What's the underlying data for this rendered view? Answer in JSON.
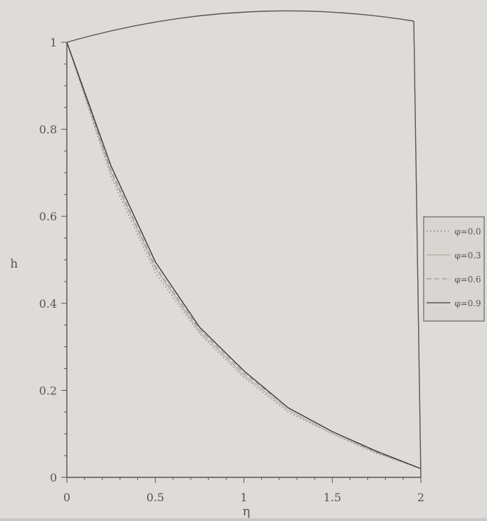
{
  "chart_data": {
    "type": "line",
    "title": "",
    "xlabel": "η",
    "ylabel": "h",
    "xlim": [
      0,
      2
    ],
    "ylim": [
      0,
      1
    ],
    "x_ticks": [
      0,
      0.5,
      1,
      1.5,
      2
    ],
    "x_tick_labels": [
      "0",
      "0.5",
      "1",
      "1.5",
      "2"
    ],
    "y_ticks": [
      0,
      0.2,
      0.4,
      0.6,
      0.8,
      1
    ],
    "y_tick_labels": [
      "0",
      "0.2",
      "0.4",
      "0.6",
      "0.8",
      "1"
    ],
    "grid": false,
    "legend_position": "right",
    "x": [
      0,
      0.25,
      0.5,
      0.75,
      1.0,
      1.25,
      1.5,
      1.75,
      2.0
    ],
    "series": [
      {
        "name": "φ=0.0",
        "style": "dotted",
        "color": "#8a8a8a",
        "values": [
          1.0,
          0.69,
          0.47,
          0.33,
          0.23,
          0.15,
          0.1,
          0.055,
          0.02
        ]
      },
      {
        "name": "φ=0.3",
        "style": "solid-light",
        "color": "#b0a9a2",
        "values": [
          1.0,
          0.7,
          0.48,
          0.335,
          0.235,
          0.155,
          0.1,
          0.057,
          0.02
        ]
      },
      {
        "name": "φ=0.6",
        "style": "dashed",
        "color": "#999",
        "values": [
          1.0,
          0.705,
          0.485,
          0.34,
          0.24,
          0.16,
          0.105,
          0.058,
          0.02
        ]
      },
      {
        "name": "φ=0.9",
        "style": "solid",
        "color": "#3a3a3a",
        "values": [
          1.0,
          0.715,
          0.495,
          0.345,
          0.245,
          0.16,
          0.105,
          0.06,
          0.02
        ]
      }
    ]
  }
}
